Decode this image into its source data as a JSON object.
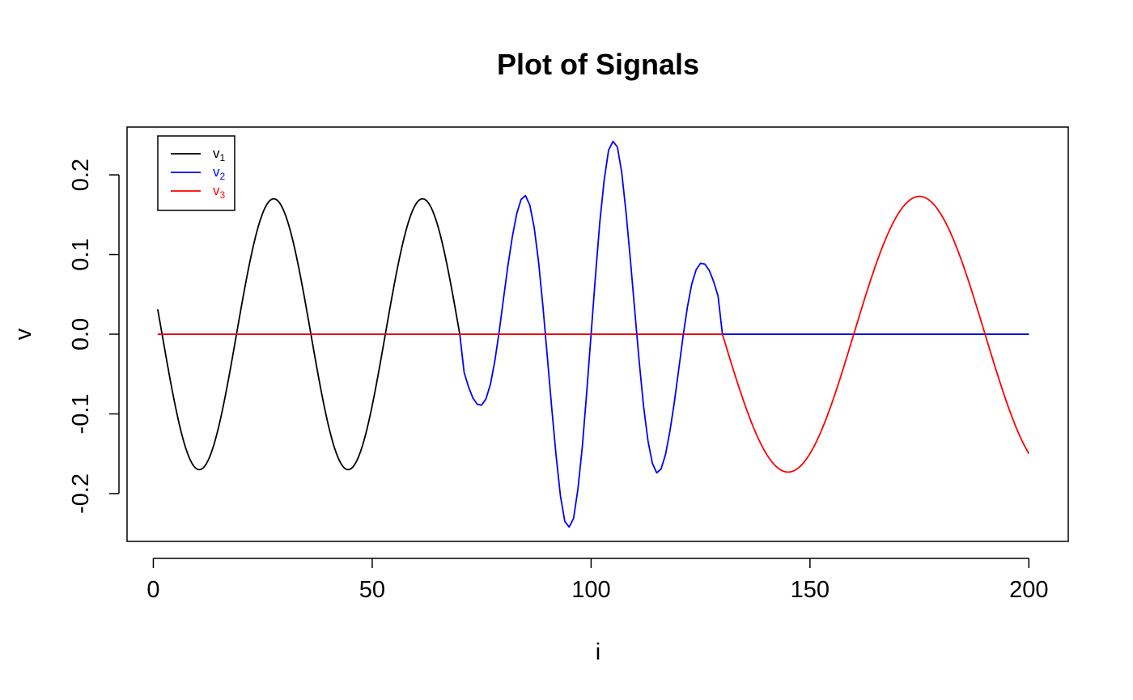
{
  "chart_data": {
    "type": "line",
    "title": "Plot of Signals",
    "xlabel": "i",
    "ylabel": "v",
    "xlim": [
      -6,
      209
    ],
    "ylim": [
      -0.26,
      0.26
    ],
    "x_ticks": [
      0,
      50,
      100,
      150,
      200
    ],
    "y_ticks": [
      -0.2,
      -0.1,
      0.0,
      0.1,
      0.2
    ],
    "x_tick_labels": [
      "0",
      "50",
      "100",
      "150",
      "200"
    ],
    "y_tick_labels": [
      "-0.2",
      "-0.1",
      "0.0",
      "0.1",
      "0.2"
    ],
    "grid": false,
    "legend_position": "top-left",
    "x": {
      "start": 1,
      "end": 200,
      "step": 1
    },
    "series": [
      {
        "name": "v1",
        "label_base": "v",
        "label_sub": "1",
        "color": "#000000",
        "segments": [
          {
            "type": "sine",
            "x_start": 1,
            "x_end": 70,
            "amplitude": 0.17,
            "period": 34,
            "phase_x": 27.5,
            "shape": "cos"
          },
          {
            "type": "zero",
            "x_start": 70,
            "x_end": 200
          }
        ]
      },
      {
        "name": "v2",
        "label_base": "v",
        "label_sub": "2",
        "color": "#0000ff",
        "segments": [
          {
            "type": "zero",
            "x_start": 1,
            "x_end": 70
          },
          {
            "type": "points",
            "x": [
              70,
              71,
              72,
              73,
              74,
              75,
              76,
              77,
              78,
              79,
              80,
              81,
              82,
              83,
              84,
              85,
              86,
              87,
              88,
              89,
              90,
              91,
              92,
              93,
              94,
              95,
              96,
              97,
              98,
              99,
              100,
              101,
              102,
              103,
              104,
              105,
              106,
              107,
              108,
              109,
              110,
              111,
              112,
              113,
              114,
              115,
              116,
              117,
              118,
              119,
              120,
              121,
              122,
              123,
              124,
              125,
              126,
              127,
              128,
              129,
              130
            ],
            "y": [
              0.0,
              -0.048,
              -0.066,
              -0.08,
              -0.088,
              -0.089,
              -0.081,
              -0.063,
              -0.034,
              0.003,
              0.045,
              0.086,
              0.122,
              0.151,
              0.169,
              0.174,
              0.162,
              0.134,
              0.091,
              0.035,
              -0.028,
              -0.092,
              -0.152,
              -0.203,
              -0.235,
              -0.242,
              -0.231,
              -0.194,
              -0.141,
              -0.073,
              0.0,
              0.073,
              0.141,
              0.194,
              0.231,
              0.242,
              0.235,
              0.203,
              0.152,
              0.092,
              0.028,
              -0.035,
              -0.091,
              -0.134,
              -0.162,
              -0.174,
              -0.169,
              -0.151,
              -0.122,
              -0.086,
              -0.045,
              -0.003,
              0.034,
              0.063,
              0.081,
              0.089,
              0.088,
              0.08,
              0.066,
              0.048,
              0.0
            ]
          },
          {
            "type": "zero",
            "x_start": 130,
            "x_end": 200
          }
        ]
      },
      {
        "name": "v3",
        "label_base": "v",
        "label_sub": "3",
        "color": "#ff0000",
        "segments": [
          {
            "type": "zero",
            "x_start": 1,
            "x_end": 130
          },
          {
            "type": "sine",
            "x_start": 130,
            "x_end": 200,
            "amplitude": 0.173,
            "period": 60,
            "phase_x": 175,
            "shape": "cos"
          }
        ]
      }
    ]
  }
}
